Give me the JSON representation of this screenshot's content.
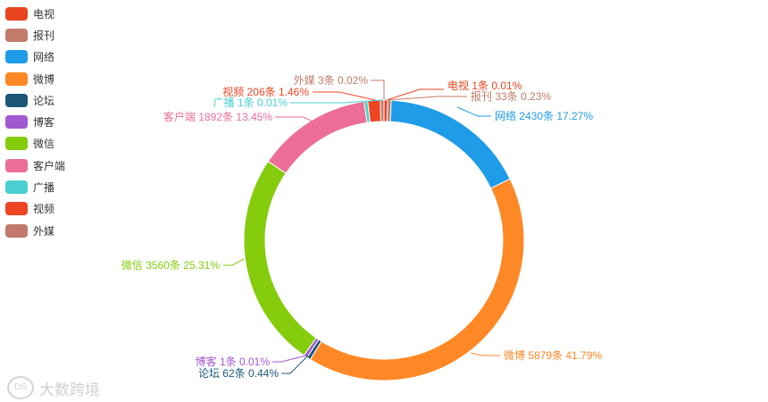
{
  "chart_data": {
    "type": "pie",
    "donut": true,
    "legend_position": "top-left",
    "unit": "条",
    "slices": [
      {
        "name": "电视",
        "value": 1,
        "percent": "0.01%",
        "color": "#e8441f"
      },
      {
        "name": "报刊",
        "value": 33,
        "percent": "0.23%",
        "color": "#c27b6a"
      },
      {
        "name": "网络",
        "value": 2430,
        "percent": "17.27%",
        "color": "#1f9ce8"
      },
      {
        "name": "微博",
        "value": 5879,
        "percent": "41.79%",
        "color": "#ff8826"
      },
      {
        "name": "论坛",
        "value": 62,
        "percent": "0.44%",
        "color": "#1b5878"
      },
      {
        "name": "博客",
        "value": 1,
        "percent": "0.01%",
        "color": "#a25ad0"
      },
      {
        "name": "微信",
        "value": 3560,
        "percent": "25.31%",
        "color": "#84cc0c"
      },
      {
        "name": "客户端",
        "value": 1892,
        "percent": "13.45%",
        "color": "#ec6e96"
      },
      {
        "name": "广播",
        "value": 1,
        "percent": "0.01%",
        "color": "#4ad0d0"
      },
      {
        "name": "视频",
        "value": 206,
        "percent": "1.46%",
        "color": "#ee4522"
      },
      {
        "name": "外媒",
        "value": 3,
        "percent": "0.02%",
        "color": "#c17a6b"
      }
    ]
  },
  "watermark": {
    "logo": "DS",
    "text": "大数跨境"
  }
}
